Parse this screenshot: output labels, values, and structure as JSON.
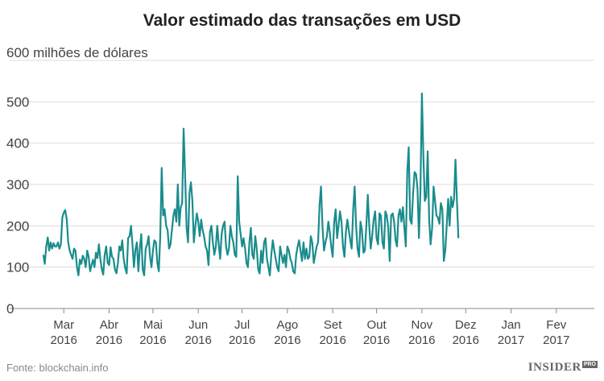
{
  "chart_data": {
    "type": "line",
    "title": "Valor estimado das transações em USD",
    "ylabel": "",
    "y_unit_label": "600 milhões de dólares",
    "ylim": [
      0,
      600
    ],
    "yticks": [
      "0",
      "100",
      "200",
      "300",
      "400",
      "500"
    ],
    "xlim": [
      "2016-02-15",
      "2017-02-27"
    ],
    "x_ticks": [
      {
        "date": "2016-03-01",
        "month": "Mar",
        "year": "2016"
      },
      {
        "date": "2016-04-01",
        "month": "Abr",
        "year": "2016"
      },
      {
        "date": "2016-05-01",
        "month": "Mai",
        "year": "2016"
      },
      {
        "date": "2016-06-01",
        "month": "Jun",
        "year": "2016"
      },
      {
        "date": "2016-07-01",
        "month": "Jul",
        "year": "2016"
      },
      {
        "date": "2016-08-01",
        "month": "Ago",
        "year": "2016"
      },
      {
        "date": "2016-09-01",
        "month": "Set",
        "year": "2016"
      },
      {
        "date": "2016-10-01",
        "month": "Out",
        "year": "2016"
      },
      {
        "date": "2016-11-01",
        "month": "Nov",
        "year": "2016"
      },
      {
        "date": "2016-12-01",
        "month": "Dez",
        "year": "2016"
      },
      {
        "date": "2017-01-01",
        "month": "Jan",
        "year": "2017"
      },
      {
        "date": "2017-02-01",
        "month": "Fev",
        "year": "2017"
      }
    ],
    "grid": true,
    "series": [
      {
        "color": "#1a8c8c",
        "start_date": "2016-02-16",
        "values": [
          130,
          108,
          150,
          172,
          140,
          160,
          145,
          158,
          150,
          150,
          160,
          145,
          155,
          220,
          232,
          238,
          215,
          160,
          140,
          130,
          120,
          145,
          140,
          100,
          80,
          118,
          108,
          128,
          120,
          100,
          140,
          125,
          90,
          105,
          118,
          100,
          135,
          122,
          155,
          120,
          95,
          82,
          130,
          150,
          110,
          105,
          148,
          125,
          120,
          95,
          85,
          110,
          150,
          140,
          165,
          120,
          98,
          85,
          170,
          175,
          200,
          155,
          100,
          142,
          160,
          90,
          145,
          180,
          95,
          80,
          145,
          155,
          175,
          125,
          100,
          140,
          165,
          160,
          110,
          90,
          175,
          340,
          225,
          240,
          200,
          190,
          145,
          155,
          190,
          225,
          240,
          210,
          300,
          200,
          245,
          255,
          435,
          320,
          195,
          160,
          280,
          305,
          260,
          160,
          200,
          230,
          210,
          175,
          215,
          190,
          175,
          150,
          140,
          105,
          185,
          200,
          160,
          130,
          150,
          200,
          155,
          120,
          180,
          200,
          210,
          150,
          130,
          145,
          200,
          175,
          160,
          130,
          125,
          320,
          210,
          180,
          150,
          170,
          145,
          110,
          100,
          160,
          195,
          130,
          120,
          175,
          145,
          95,
          85,
          140,
          110,
          160,
          170,
          120,
          100,
          80,
          130,
          165,
          140,
          120,
          100,
          90,
          150,
          130,
          110,
          130,
          100,
          150,
          140,
          120,
          110,
          90,
          85,
          130,
          150,
          165,
          140,
          115,
          160,
          120,
          145,
          120,
          125,
          175,
          160,
          110,
          130,
          150,
          160,
          250,
          295,
          200,
          140,
          160,
          175,
          210,
          185,
          150,
          125,
          210,
          240,
          170,
          200,
          235,
          210,
          150,
          125,
          185,
          215,
          190,
          165,
          145,
          240,
          295,
          200,
          145,
          125,
          210,
          190,
          135,
          140,
          200,
          275,
          200,
          145,
          175,
          215,
          235,
          170,
          155,
          230,
          225,
          160,
          145,
          235,
          225,
          195,
          115,
          225,
          230,
          210,
          165,
          150,
          225,
          240,
          210,
          245,
          195,
          150,
          330,
          390,
          215,
          205,
          280,
          330,
          325,
          290,
          170,
          280,
          520,
          370,
          260,
          270,
          380,
          215,
          155,
          195,
          295,
          260,
          225,
          220,
          205,
          255,
          240,
          115,
          140,
          200,
          265,
          200,
          270,
          245,
          265,
          360,
          260,
          170
        ]
      }
    ]
  },
  "source": "Fonte: blockchain.info",
  "logo": {
    "text": "INSIDER",
    "badge": "PRO"
  }
}
